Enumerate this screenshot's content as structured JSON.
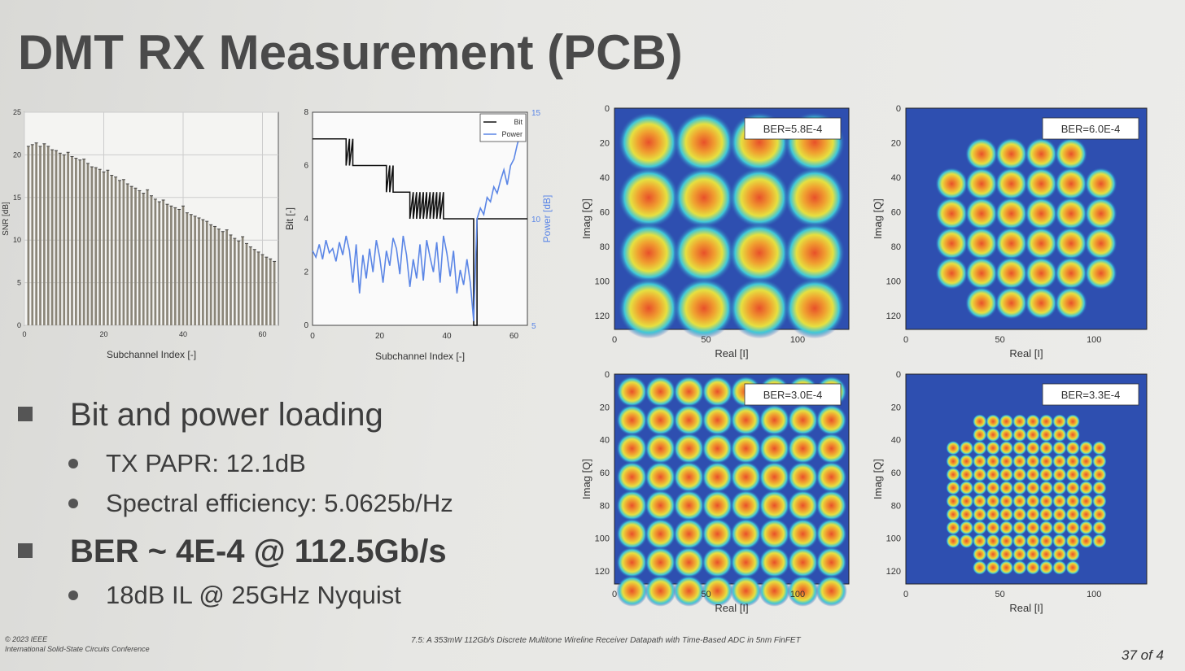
{
  "title": "DMT RX Measurement (PCB)",
  "bullets": {
    "b1": "Bit and power loading",
    "b1_sub1": "TX PAPR: 12.1dB",
    "b1_sub2": "Spectral efficiency: 5.0625b/Hz",
    "b2": "BER ~ 4E-4 @ 112.5Gb/s",
    "b2_sub1": "18dB IL @ 25GHz Nyquist"
  },
  "footer": {
    "line1": "© 2023 IEEE",
    "line2": "International Solid-State Circuits Conference",
    "center": "7.5: A 353mW 112Gb/s Discrete Multitone Wireline Receiver Datapath with Time-Based ADC in 5nm FinFET",
    "page": "37 of 4"
  },
  "colors": {
    "bar": "#8a8578",
    "bit_line": "#111111",
    "power_line": "#5b86e6",
    "iq_bg": "#2e4fb0"
  },
  "chart_data": [
    {
      "type": "bar",
      "xlabel": "Subchannel Index [-]",
      "ylabel": "SNR [dB]",
      "xlim": [
        0,
        64
      ],
      "ylim": [
        0,
        25
      ],
      "xticks": [
        "0",
        "20",
        "40",
        "60"
      ],
      "yticks": [
        "0",
        "5",
        "10",
        "15",
        "20",
        "25"
      ],
      "x": [
        1,
        2,
        3,
        4,
        5,
        6,
        7,
        8,
        9,
        10,
        11,
        12,
        13,
        14,
        15,
        16,
        17,
        18,
        19,
        20,
        21,
        22,
        23,
        24,
        25,
        26,
        27,
        28,
        29,
        30,
        31,
        32,
        33,
        34,
        35,
        36,
        37,
        38,
        39,
        40,
        41,
        42,
        43,
        44,
        45,
        46,
        47,
        48,
        49,
        50,
        51,
        52,
        53,
        54,
        55,
        56,
        57,
        58,
        59,
        60,
        61,
        62,
        63
      ],
      "values": [
        21,
        21.2,
        21.4,
        21,
        21.3,
        21,
        20.6,
        20.5,
        20.2,
        20,
        20.3,
        19.8,
        19.6,
        19.4,
        19.5,
        19,
        18.6,
        18.5,
        18.3,
        18,
        18.2,
        17.6,
        17.4,
        17,
        17.1,
        16.6,
        16.3,
        16.1,
        15.8,
        15.5,
        15.9,
        15.2,
        14.8,
        14.5,
        14.7,
        14.2,
        14,
        13.8,
        13.6,
        14,
        13.2,
        13,
        12.8,
        12.6,
        12.4,
        12.2,
        11.8,
        11.6,
        11.3,
        11,
        11.2,
        10.6,
        10.2,
        9.9,
        10.4,
        9.6,
        9.2,
        8.9,
        8.6,
        8.3,
        8,
        7.8,
        7.5
      ]
    },
    {
      "type": "line",
      "xlabel": "Subchannel Index [-]",
      "ylabel": "Bit [-]",
      "y2label": "Power [dB]",
      "xlim": [
        0,
        64
      ],
      "ylim": [
        0,
        8
      ],
      "y2lim": [
        5,
        15
      ],
      "xticks": [
        "0",
        "20",
        "40",
        "60"
      ],
      "yticks": [
        "0",
        "2",
        "4",
        "6",
        "8"
      ],
      "y2ticks": [
        "5",
        "10",
        "15"
      ],
      "legend": [
        "Bit",
        "Power"
      ],
      "series": [
        {
          "name": "Bit",
          "axis": "left",
          "x": [
            0,
            10,
            10,
            11,
            11,
            12,
            12,
            13,
            13,
            22,
            22,
            23,
            23,
            24,
            24,
            26,
            26,
            29,
            29,
            30,
            30,
            31,
            31,
            32,
            32,
            33,
            33,
            34,
            34,
            35,
            35,
            36,
            36,
            37,
            37,
            38,
            38,
            39,
            39,
            40,
            40,
            42,
            42,
            43,
            43,
            47,
            47,
            48,
            48,
            49,
            49,
            64
          ],
          "y": [
            7,
            7,
            6,
            7,
            6,
            7,
            6,
            6,
            6,
            6,
            5,
            6,
            5,
            6,
            5,
            5,
            5,
            5,
            4,
            5,
            4,
            5,
            4,
            5,
            4,
            5,
            4,
            5,
            4,
            5,
            4,
            5,
            4,
            5,
            4,
            5,
            4,
            5,
            4,
            4,
            4,
            4,
            4,
            4,
            4,
            4,
            4,
            4,
            0,
            0,
            4,
            4
          ]
        },
        {
          "name": "Power",
          "axis": "right",
          "x": [
            0,
            1,
            2,
            3,
            4,
            5,
            6,
            7,
            8,
            9,
            10,
            11,
            12,
            13,
            14,
            15,
            16,
            17,
            18,
            19,
            20,
            21,
            22,
            23,
            24,
            25,
            26,
            27,
            28,
            29,
            30,
            31,
            32,
            33,
            34,
            35,
            36,
            37,
            38,
            39,
            40,
            41,
            42,
            43,
            44,
            45,
            46,
            47,
            48,
            49,
            50,
            51,
            52,
            53,
            54,
            55,
            56,
            57,
            58,
            59,
            60,
            61,
            62,
            63
          ],
          "y": [
            8.5,
            8.2,
            8.8,
            8.1,
            9,
            8.4,
            8.6,
            8,
            8.9,
            8.3,
            9.2,
            8.5,
            7,
            8.8,
            6.5,
            8.3,
            7.2,
            8.6,
            7.5,
            9,
            8.2,
            7,
            8.5,
            7.8,
            9.1,
            8.6,
            7.4,
            9.2,
            8.3,
            6.8,
            8.1,
            7.2,
            8.8,
            7.1,
            9,
            8.2,
            7.5,
            8.9,
            7,
            9.2,
            8.4,
            7.3,
            8.5,
            6.5,
            7.6,
            6.9,
            8.1,
            7,
            5.2,
            10,
            10.5,
            10.2,
            11,
            10.8,
            11.5,
            11.2,
            11.8,
            12.3,
            11.6,
            12.5,
            12.8,
            13.5,
            14,
            14.8
          ]
        }
      ]
    },
    {
      "type": "scatter",
      "name": "constellation-16",
      "ber": "BER=5.8E-4",
      "xlabel": "Real [I]",
      "ylabel": "Imag [Q]",
      "xticks": [
        "0",
        "50",
        "100"
      ],
      "yticks": [
        "0",
        "20",
        "40",
        "60",
        "80",
        "100",
        "120"
      ],
      "grid": 4
    },
    {
      "type": "scatter",
      "name": "constellation-36",
      "ber": "BER=6.0E-4",
      "xlabel": "Real [I]",
      "ylabel": "Imag [Q]",
      "xticks": [
        "0",
        "50",
        "100"
      ],
      "yticks": [
        "0",
        "20",
        "40",
        "60",
        "80",
        "100",
        "120"
      ],
      "grid": 6
    },
    {
      "type": "scatter",
      "name": "constellation-64",
      "ber": "BER=3.0E-4",
      "xlabel": "Real [I]",
      "ylabel": "Imag [Q]",
      "xticks": [
        "0",
        "50",
        "100"
      ],
      "yticks": [
        "0",
        "20",
        "40",
        "60",
        "80",
        "100",
        "120"
      ],
      "grid": 8
    },
    {
      "type": "scatter",
      "name": "constellation-128",
      "ber": "BER=3.3E-4",
      "xlabel": "Real [I]",
      "ylabel": "Imag [Q]",
      "xticks": [
        "0",
        "50",
        "100"
      ],
      "yticks": [
        "0",
        "20",
        "40",
        "60",
        "80",
        "100",
        "120"
      ],
      "grid": 12
    }
  ]
}
